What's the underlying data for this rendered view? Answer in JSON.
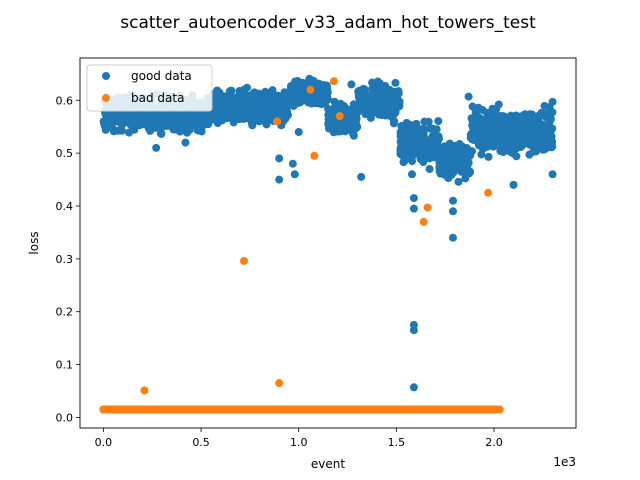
{
  "colors": {
    "series0": "#1f77b4",
    "series1": "#ff7f0e",
    "axis": "#000000",
    "legend_border": "#cccccc"
  },
  "chart_data": {
    "type": "scatter",
    "title": "scatter_autoencoder_v33_adam_hot_towers_test",
    "xlabel": "event",
    "ylabel": "loss",
    "x_offset_label": "1e3",
    "xlim": [
      -0.12,
      2.42
    ],
    "ylim": [
      -0.02,
      0.68
    ],
    "x_ticks": [
      0,
      0.5,
      1.0,
      1.5,
      2.0
    ],
    "x_tick_labels": [
      "0.0",
      "0.5",
      "1.0",
      "1.5",
      "2.0"
    ],
    "y_ticks": [
      0.0,
      0.1,
      0.2,
      0.3,
      0.4,
      0.5,
      0.6
    ],
    "y_tick_labels": [
      "0.0",
      "0.1",
      "0.2",
      "0.3",
      "0.4",
      "0.5",
      "0.6"
    ],
    "grid": false,
    "legend_placement": "top-left",
    "series": [
      {
        "name": "good data",
        "color": "#1f77b4",
        "bands": [
          {
            "x": [
              0.0,
              0.55
            ],
            "y": [
              0.53,
              0.62
            ]
          },
          {
            "x": [
              0.55,
              0.95
            ],
            "y": [
              0.54,
              0.63
            ]
          },
          {
            "x": [
              0.95,
              1.15
            ],
            "y": [
              0.58,
              0.645
            ]
          },
          {
            "x": [
              1.15,
              1.3
            ],
            "y": [
              0.52,
              0.61
            ]
          },
          {
            "x": [
              1.3,
              1.52
            ],
            "y": [
              0.55,
              0.645
            ]
          },
          {
            "x": [
              1.52,
              1.72
            ],
            "y": [
              0.47,
              0.57
            ]
          },
          {
            "x": [
              1.72,
              1.88
            ],
            "y": [
              0.44,
              0.53
            ]
          },
          {
            "x": [
              1.88,
              2.3
            ],
            "y": [
              0.48,
              0.6
            ]
          }
        ],
        "points": [
          [
            0.27,
            0.51
          ],
          [
            0.42,
            0.52
          ],
          [
            0.9,
            0.45
          ],
          [
            0.9,
            0.49
          ],
          [
            0.92,
            0.56
          ],
          [
            0.97,
            0.48
          ],
          [
            0.98,
            0.46
          ],
          [
            1.0,
            0.54
          ],
          [
            1.32,
            0.455
          ],
          [
            1.58,
            0.46
          ],
          [
            1.59,
            0.415
          ],
          [
            1.59,
            0.395
          ],
          [
            1.59,
            0.175
          ],
          [
            1.59,
            0.165
          ],
          [
            1.59,
            0.057
          ],
          [
            1.67,
            0.47
          ],
          [
            1.79,
            0.41
          ],
          [
            1.79,
            0.39
          ],
          [
            1.79,
            0.34
          ],
          [
            2.1,
            0.44
          ],
          [
            2.3,
            0.46
          ],
          [
            2.3,
            0.597
          ],
          [
            1.87,
            0.607
          ],
          [
            0.72,
            0.62
          ],
          [
            1.27,
            0.63
          ]
        ],
        "baseline": {
          "x": [
            0.0,
            2.03
          ],
          "y": 0.015
        }
      },
      {
        "name": "bad data",
        "color": "#ff7f0e",
        "points": [
          [
            0.21,
            0.051
          ],
          [
            0.72,
            0.296
          ],
          [
            0.89,
            0.56
          ],
          [
            0.9,
            0.065
          ],
          [
            1.06,
            0.62
          ],
          [
            1.08,
            0.495
          ],
          [
            1.18,
            0.636
          ],
          [
            1.21,
            0.57
          ],
          [
            1.64,
            0.37
          ],
          [
            1.66,
            0.397
          ],
          [
            1.97,
            0.425
          ]
        ],
        "baseline": {
          "x": [
            0.0,
            2.03
          ],
          "y": 0.015
        }
      }
    ]
  }
}
